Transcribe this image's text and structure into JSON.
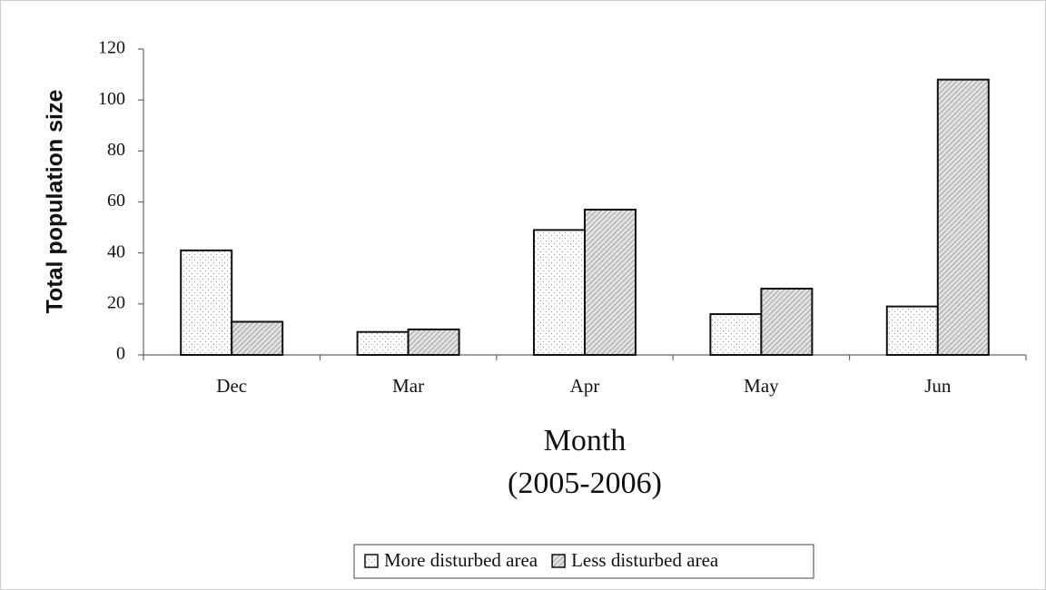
{
  "chart_data": {
    "type": "bar",
    "ylabel": "Total population size",
    "xlabel": [
      "Month",
      "(2005-2006)"
    ],
    "categories": [
      "Dec",
      "Mar",
      "Apr",
      "May",
      "Jun"
    ],
    "series": [
      {
        "name": "More disturbed area",
        "color": "#ffffff",
        "pattern": "dots",
        "values": [
          41,
          9,
          49,
          16,
          19
        ]
      },
      {
        "name": "Less disturbed area",
        "color": "#ffffff",
        "pattern": "hatch",
        "values": [
          13,
          10,
          57,
          26,
          108
        ]
      }
    ],
    "ylim": [
      0,
      120
    ],
    "yticks": [
      0,
      20,
      40,
      60,
      80,
      100,
      120
    ],
    "grid": false,
    "legend": "bottom"
  }
}
